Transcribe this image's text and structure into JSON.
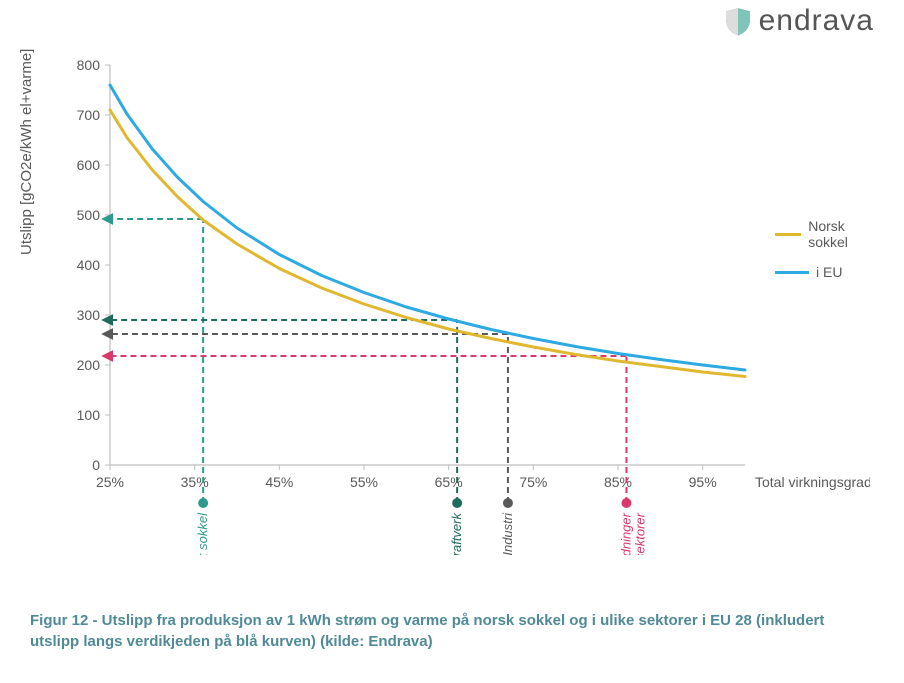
{
  "logo": {
    "text": "endrava"
  },
  "chart": {
    "type": "line",
    "ylabel": "Utslipp [gCO2e/kWh el+varme]",
    "xlabel": "Total virkningsgrad",
    "xlim": [
      25,
      100
    ],
    "ylim": [
      0,
      800
    ],
    "xtick_step": 10,
    "ytick_step": 100,
    "xticks_labels": [
      "25%",
      "35%",
      "45%",
      "55%",
      "65%",
      "75%",
      "85%",
      "95%"
    ],
    "yticks_labels": [
      "0",
      "100",
      "200",
      "300",
      "400",
      "500",
      "600",
      "700",
      "800"
    ],
    "background_color": "#ffffff",
    "axis_color": "#bfbfbf",
    "tick_color": "#bfbfbf",
    "text_color": "#595959",
    "label_fontsize": 15,
    "tick_fontsize": 14,
    "series": [
      {
        "name": "Norsk sokkel",
        "color": "#e0b830",
        "line_width": 3,
        "points": [
          [
            25,
            710
          ],
          [
            27,
            655
          ],
          [
            30,
            590
          ],
          [
            33,
            536
          ],
          [
            36,
            490
          ],
          [
            40,
            442
          ],
          [
            45,
            393
          ],
          [
            50,
            354
          ],
          [
            55,
            322
          ],
          [
            60,
            295
          ],
          [
            65,
            272
          ],
          [
            70,
            253
          ],
          [
            75,
            236
          ],
          [
            80,
            221
          ],
          [
            85,
            208
          ],
          [
            90,
            197
          ],
          [
            95,
            186
          ],
          [
            100,
            177
          ]
        ]
      },
      {
        "name": "i EU",
        "color": "#2daae1",
        "line_width": 3,
        "points": [
          [
            25,
            760
          ],
          [
            27,
            702
          ],
          [
            30,
            632
          ],
          [
            33,
            575
          ],
          [
            36,
            527
          ],
          [
            40,
            474
          ],
          [
            45,
            421
          ],
          [
            50,
            379
          ],
          [
            55,
            345
          ],
          [
            60,
            316
          ],
          [
            65,
            292
          ],
          [
            70,
            271
          ],
          [
            75,
            253
          ],
          [
            80,
            237
          ],
          [
            85,
            223
          ],
          [
            90,
            211
          ],
          [
            95,
            200
          ],
          [
            100,
            190
          ]
        ]
      }
    ],
    "markers": [
      {
        "label": "Norsk sokkel",
        "x": 36,
        "y": 492,
        "color": "#2e9a8c",
        "dash": "6,4"
      },
      {
        "label": "Gasskraftverk",
        "x": 66,
        "y": 290,
        "color": "#1e6b5c",
        "dash": "6,4"
      },
      {
        "label": "Industri",
        "x": 72,
        "y": 262,
        "color": "#595959",
        "dash": "6,4"
      },
      {
        "label": "Husholdninger og ande sektorer",
        "x": 86,
        "y": 218,
        "color": "#d83a6c",
        "dash": "6,4"
      }
    ],
    "legend_position": "right"
  },
  "caption": "Figur 12 - Utslipp fra produksjon av 1 kWh strøm og varme på norsk sokkel og i ulike sektorer i EU 28 (inkludert utslipp langs verdikjeden på blå kurven) (kilde: Endrava)"
}
